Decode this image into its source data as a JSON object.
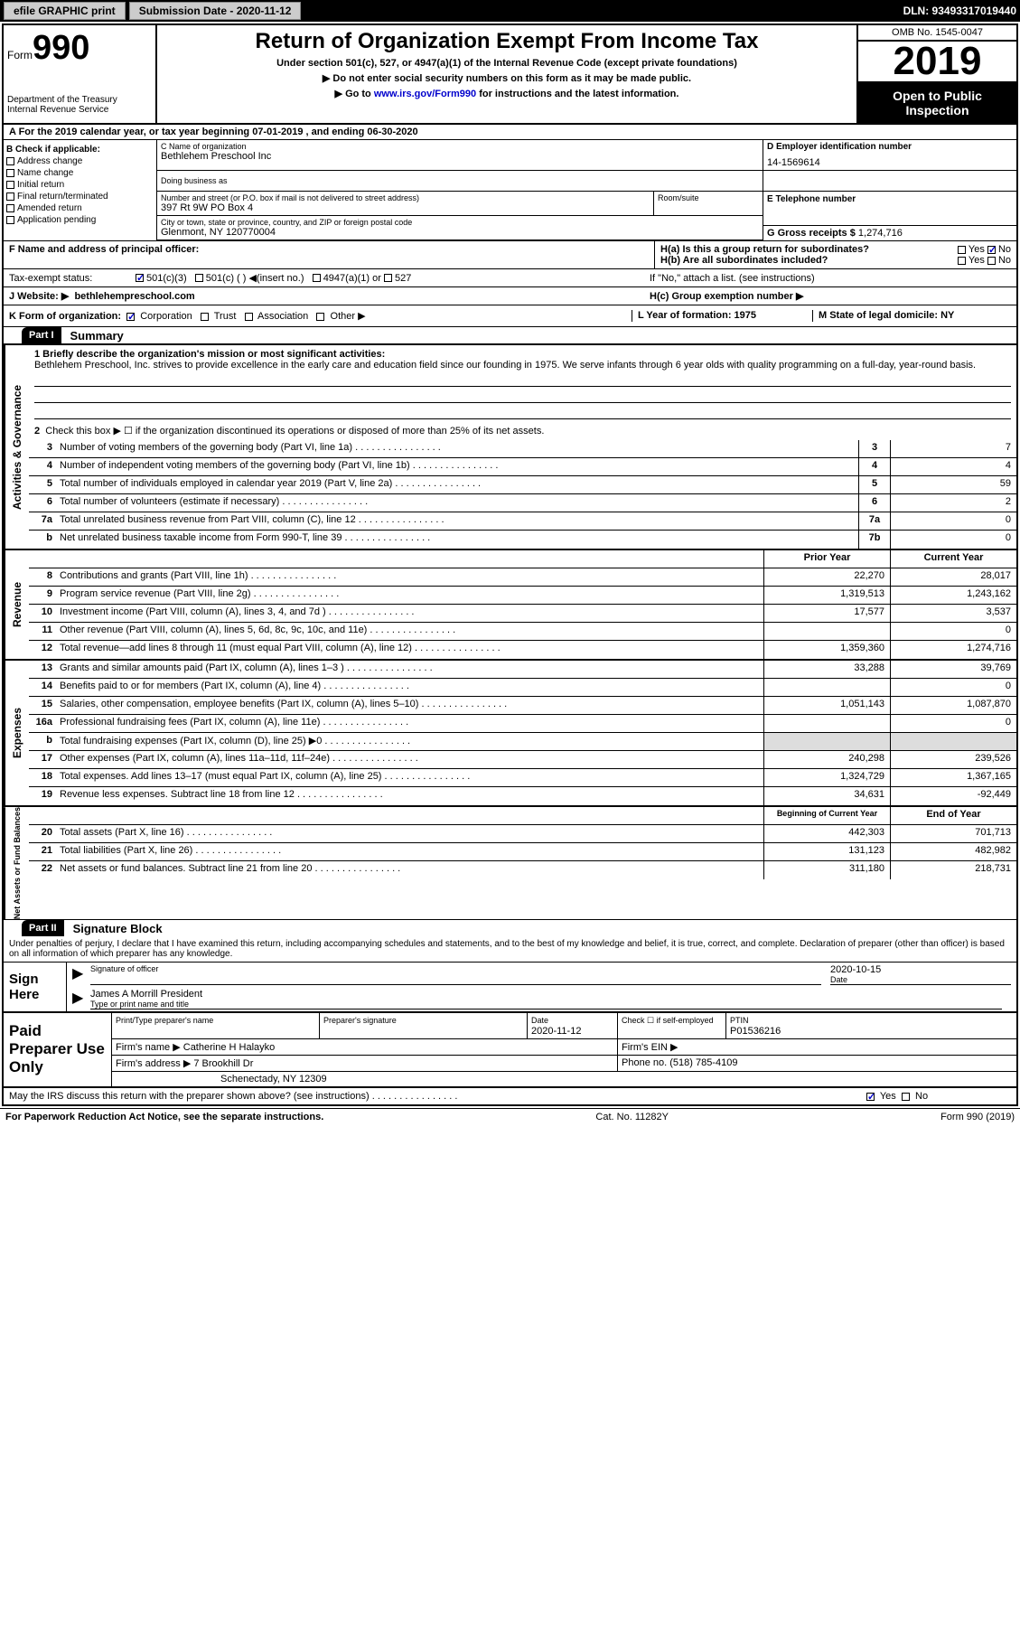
{
  "topbar": {
    "efile": "efile GRAPHIC print",
    "subdate_label": "Submission Date - ",
    "subdate": "2020-11-12",
    "dln": "DLN: 93493317019440"
  },
  "header": {
    "form_label": "Form",
    "form_num": "990",
    "dept": "Department of the Treasury\nInternal Revenue Service",
    "title": "Return of Organization Exempt From Income Tax",
    "subtitle": "Under section 501(c), 527, or 4947(a)(1) of the Internal Revenue Code (except private foundations)",
    "note1": "▶ Do not enter social security numbers on this form as it may be made public.",
    "note2_pre": "▶ Go to ",
    "note2_link": "www.irs.gov/Form990",
    "note2_post": " for instructions and the latest information.",
    "omb": "OMB No. 1545-0047",
    "year": "2019",
    "inspect": "Open to Public Inspection"
  },
  "lineA": "A For the 2019 calendar year, or tax year beginning 07-01-2019    , and ending 06-30-2020",
  "colB": {
    "hdr": "B Check if applicable:",
    "addr": "Address change",
    "name": "Name change",
    "initial": "Initial return",
    "final": "Final return/terminated",
    "amended": "Amended return",
    "app": "Application pending"
  },
  "colC": {
    "name_lbl": "C Name of organization",
    "name": "Bethlehem Preschool Inc",
    "dba_lbl": "Doing business as",
    "street_lbl": "Number and street (or P.O. box if mail is not delivered to street address)",
    "street": "397 Rt 9W PO Box 4",
    "room_lbl": "Room/suite",
    "city_lbl": "City or town, state or province, country, and ZIP or foreign postal code",
    "city": "Glenmont, NY  120770004"
  },
  "colD": {
    "lbl": "D Employer identification number",
    "val": "14-1569614"
  },
  "colE": {
    "lbl": "E Telephone number"
  },
  "colG": {
    "lbl": "G Gross receipts $",
    "val": "1,274,716"
  },
  "rowF": {
    "lbl": "F  Name and address of principal officer:"
  },
  "rowH": {
    "ha": "H(a)  Is this a group return for subordinates?",
    "hb": "H(b)  Are all subordinates included?",
    "hb_note": "If \"No,\" attach a list. (see instructions)",
    "hc": "H(c)  Group exemption number ▶",
    "yes": "Yes",
    "no": "No"
  },
  "taxStatus": {
    "lbl": "Tax-exempt status:",
    "o1": "501(c)(3)",
    "o2": "501(c) (  ) ◀(insert no.)",
    "o3": "4947(a)(1) or",
    "o4": "527"
  },
  "website": {
    "lbl": "J   Website: ▶",
    "val": "bethlehempreschool.com"
  },
  "rowK": {
    "lbl": "K Form of organization:",
    "corp": "Corporation",
    "trust": "Trust",
    "assoc": "Association",
    "other": "Other ▶",
    "L": "L Year of formation: 1975",
    "M": "M State of legal domicile: NY"
  },
  "part1": {
    "hdr": "Part I",
    "title": "Summary"
  },
  "summary": {
    "l1_lbl": "1  Briefly describe the organization's mission or most significant activities:",
    "l1_text": "Bethlehem Preschool, Inc. strives to provide excellence in the early care and education field since our founding in 1975. We serve infants through 6 year olds with quality programming on a full-day, year-round basis.",
    "l2": "Check this box ▶ ☐  if the organization discontinued its operations or disposed of more than 25% of its net assets.",
    "lines": [
      {
        "n": "3",
        "d": "Number of voting members of the governing body (Part VI, line 1a)",
        "b": "3",
        "v": "7"
      },
      {
        "n": "4",
        "d": "Number of independent voting members of the governing body (Part VI, line 1b)",
        "b": "4",
        "v": "4"
      },
      {
        "n": "5",
        "d": "Total number of individuals employed in calendar year 2019 (Part V, line 2a)",
        "b": "5",
        "v": "59"
      },
      {
        "n": "6",
        "d": "Total number of volunteers (estimate if necessary)",
        "b": "6",
        "v": "2"
      },
      {
        "n": "7a",
        "d": "Total unrelated business revenue from Part VIII, column (C), line 12",
        "b": "7a",
        "v": "0"
      },
      {
        "n": "b",
        "d": "Net unrelated business taxable income from Form 990-T, line 39",
        "b": "7b",
        "v": "0"
      }
    ]
  },
  "revenue": {
    "side": "Revenue",
    "hdr_prior": "Prior Year",
    "hdr_curr": "Current Year",
    "rows": [
      {
        "n": "8",
        "d": "Contributions and grants (Part VIII, line 1h)",
        "p": "22,270",
        "c": "28,017"
      },
      {
        "n": "9",
        "d": "Program service revenue (Part VIII, line 2g)",
        "p": "1,319,513",
        "c": "1,243,162"
      },
      {
        "n": "10",
        "d": "Investment income (Part VIII, column (A), lines 3, 4, and 7d )",
        "p": "17,577",
        "c": "3,537"
      },
      {
        "n": "11",
        "d": "Other revenue (Part VIII, column (A), lines 5, 6d, 8c, 9c, 10c, and 11e)",
        "p": "",
        "c": "0"
      },
      {
        "n": "12",
        "d": "Total revenue—add lines 8 through 11 (must equal Part VIII, column (A), line 12)",
        "p": "1,359,360",
        "c": "1,274,716"
      }
    ]
  },
  "expenses": {
    "side": "Expenses",
    "rows": [
      {
        "n": "13",
        "d": "Grants and similar amounts paid (Part IX, column (A), lines 1–3 )",
        "p": "33,288",
        "c": "39,769"
      },
      {
        "n": "14",
        "d": "Benefits paid to or for members (Part IX, column (A), line 4)",
        "p": "",
        "c": "0"
      },
      {
        "n": "15",
        "d": "Salaries, other compensation, employee benefits (Part IX, column (A), lines 5–10)",
        "p": "1,051,143",
        "c": "1,087,870"
      },
      {
        "n": "16a",
        "d": "Professional fundraising fees (Part IX, column (A), line 11e)",
        "p": "",
        "c": "0"
      },
      {
        "n": "b",
        "d": "Total fundraising expenses (Part IX, column (D), line 25) ▶0",
        "p": "shade",
        "c": "shade"
      },
      {
        "n": "17",
        "d": "Other expenses (Part IX, column (A), lines 11a–11d, 11f–24e)",
        "p": "240,298",
        "c": "239,526"
      },
      {
        "n": "18",
        "d": "Total expenses. Add lines 13–17 (must equal Part IX, column (A), line 25)",
        "p": "1,324,729",
        "c": "1,367,165"
      },
      {
        "n": "19",
        "d": "Revenue less expenses. Subtract line 18 from line 12",
        "p": "34,631",
        "c": "-92,449"
      }
    ]
  },
  "netassets": {
    "side": "Net Assets or Fund Balances",
    "hdr_beg": "Beginning of Current Year",
    "hdr_end": "End of Year",
    "rows": [
      {
        "n": "20",
        "d": "Total assets (Part X, line 16)",
        "p": "442,303",
        "c": "701,713"
      },
      {
        "n": "21",
        "d": "Total liabilities (Part X, line 26)",
        "p": "131,123",
        "c": "482,982"
      },
      {
        "n": "22",
        "d": "Net assets or fund balances. Subtract line 21 from line 20",
        "p": "311,180",
        "c": "218,731"
      }
    ]
  },
  "part2": {
    "hdr": "Part II",
    "title": "Signature Block"
  },
  "sig": {
    "declare": "Under penalties of perjury, I declare that I have examined this return, including accompanying schedules and statements, and to the best of my knowledge and belief, it is true, correct, and complete. Declaration of preparer (other than officer) is based on all information of which preparer has any knowledge.",
    "here": "Sign Here",
    "sig_lbl": "Signature of officer",
    "date_lbl": "Date",
    "date_val": "2020-10-15",
    "name": "James A Morrill President",
    "name_lbl": "Type or print name and title"
  },
  "prep": {
    "left": "Paid Preparer Use Only",
    "h1": "Print/Type preparer's name",
    "h2": "Preparer's signature",
    "h3": "Date",
    "h3v": "2020-11-12",
    "h4": "Check ☐ if self-employed",
    "h5": "PTIN",
    "h5v": "P01536216",
    "firm_lbl": "Firm's name    ▶",
    "firm": "Catherine H Halayko",
    "ein_lbl": "Firm's EIN ▶",
    "addr_lbl": "Firm's address ▶",
    "addr1": "7 Brookhill Dr",
    "addr2": "Schenectady, NY  12309",
    "phone_lbl": "Phone no.",
    "phone": "(518) 785-4109"
  },
  "discuss": "May the IRS discuss this return with the preparer shown above? (see instructions)",
  "footer": {
    "left": "For Paperwork Reduction Act Notice, see the separate instructions.",
    "mid": "Cat. No. 11282Y",
    "right": "Form 990 (2019)"
  }
}
